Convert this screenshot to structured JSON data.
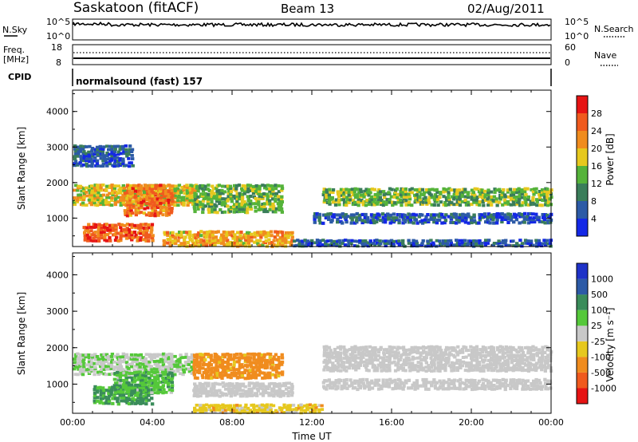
{
  "header": {
    "station": "Saskatoon (fitACF)",
    "beam": "Beam 13",
    "date": "02/Aug/2011"
  },
  "nsky_panel": {
    "left_label": "N.Sky",
    "right_label": "N.Search",
    "left_ticks": [
      "10^5",
      "10^0"
    ],
    "right_ticks": [
      "10^5",
      "10^0"
    ]
  },
  "freq_panel": {
    "left_label_1": "Freq.",
    "left_label_2": "[MHz]",
    "right_label": "Nave",
    "left_ticks": [
      "18",
      "8"
    ],
    "right_ticks": [
      "60",
      "0"
    ]
  },
  "cpid_panel": {
    "label": "CPID",
    "program": "normalsound (fast) 157"
  },
  "colors": {
    "power_scale": [
      "#1428e6",
      "#2c5aa6",
      "#3a7d5a",
      "#55b33a",
      "#e6c81e",
      "#f08c1e",
      "#f05a1e",
      "#e61414"
    ],
    "velocity_scale": [
      "#1e32c8",
      "#2c5aa6",
      "#3a8c5a",
      "#55c83a",
      "#c8c8c8",
      "#e6c81e",
      "#f08c1e",
      "#f05a1e",
      "#e61414"
    ],
    "ground_scatter": "#b4b4b4"
  },
  "chart_data": [
    {
      "type": "heatmap",
      "parameter": "power",
      "ylabel": "Slant Range [km]",
      "ylim": [
        200,
        4600
      ],
      "yticks": [
        "1000",
        "2000",
        "3000",
        "4000"
      ],
      "xlim": [
        "00:00",
        "24:00"
      ],
      "colorbar": {
        "label": "Power [dB]",
        "ticks": [
          "4",
          "8",
          "12",
          "16",
          "20",
          "24",
          "28"
        ],
        "range": [
          0,
          32
        ]
      },
      "echo_regions": [
        {
          "t0": 0.0,
          "t1": 6.2,
          "r0": 1400,
          "r1": 2000,
          "value": 18
        },
        {
          "t0": 0.5,
          "t1": 4.0,
          "r0": 400,
          "r1": 900,
          "value": 26
        },
        {
          "t0": 0.0,
          "t1": 3.0,
          "r0": 2500,
          "r1": 3100,
          "value": 6
        },
        {
          "t0": 2.5,
          "t1": 5.0,
          "r0": 1100,
          "r1": 2000,
          "value": 24
        },
        {
          "t0": 6.0,
          "t1": 10.5,
          "r0": 1200,
          "r1": 2000,
          "value": 14
        },
        {
          "t0": 4.5,
          "t1": 11.0,
          "r0": 250,
          "r1": 700,
          "value": 20
        },
        {
          "t0": 11.0,
          "t1": 24.0,
          "r0": 250,
          "r1": 450,
          "value": 6
        },
        {
          "t0": 12.5,
          "t1": 24.0,
          "r0": 1400,
          "r1": 1900,
          "value": 14
        },
        {
          "t0": 12.0,
          "t1": 24.0,
          "r0": 900,
          "r1": 1200,
          "value": 6
        }
      ]
    },
    {
      "type": "heatmap",
      "parameter": "velocity",
      "ylabel": "Slant Range [km]",
      "xlabel": "Time UT",
      "ylim": [
        200,
        4600
      ],
      "yticks": [
        "1000",
        "2000",
        "3000",
        "4000"
      ],
      "xticks": [
        "00:00",
        "04:00",
        "08:00",
        "12:00",
        "16:00",
        "20:00",
        "00:00"
      ],
      "xlim": [
        "00:00",
        "24:00"
      ],
      "colorbar": {
        "label": "Velocity [m s⁻¹]",
        "ticks": [
          "1000",
          "500",
          "100",
          "25",
          "-25",
          "-100",
          "-500",
          "-1000"
        ]
      },
      "echo_regions": [
        {
          "t0": 0.0,
          "t1": 6.0,
          "r0": 1300,
          "r1": 1900,
          "value": 20
        },
        {
          "t0": 1.0,
          "t1": 4.0,
          "r0": 500,
          "r1": 1000,
          "value": 150
        },
        {
          "t0": 2.0,
          "t1": 5.0,
          "r0": 800,
          "r1": 1400,
          "value": 80
        },
        {
          "t0": 6.0,
          "t1": 10.5,
          "r0": 1200,
          "r1": 1900,
          "value": -200
        },
        {
          "t0": 6.0,
          "t1": 11.0,
          "r0": 700,
          "r1": 1100,
          "value": 0
        },
        {
          "t0": 6.0,
          "t1": 12.5,
          "r0": 250,
          "r1": 500,
          "value": -60
        },
        {
          "t0": 12.5,
          "t1": 24.0,
          "r0": 1400,
          "r1": 2100,
          "value": 0
        },
        {
          "t0": 12.5,
          "t1": 24.0,
          "r0": 900,
          "r1": 1200,
          "value": 0
        }
      ]
    }
  ]
}
